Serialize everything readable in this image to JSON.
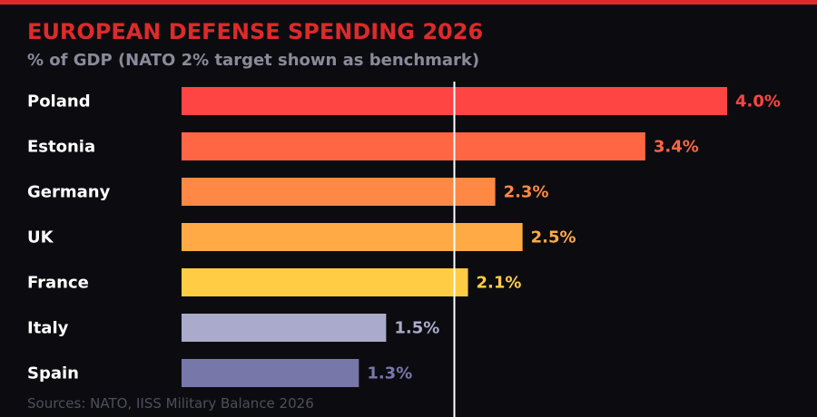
{
  "header": {
    "title": "EUROPEAN DEFENSE SPENDING 2026",
    "subtitle": "% of GDP (NATO 2% target shown as benchmark)"
  },
  "footer": {
    "source": "Sources: NATO, IISS Military Balance 2026"
  },
  "colors": {
    "accent": "#dd2a2a",
    "background": "#0c0c10",
    "benchmark": "#ffffff"
  },
  "chart_data": {
    "type": "bar",
    "orientation": "horizontal",
    "title": "EUROPEAN DEFENSE SPENDING 2026",
    "subtitle": "% of GDP (NATO 2% target shown as benchmark)",
    "categories": [
      "Poland",
      "Estonia",
      "Germany",
      "UK",
      "France",
      "Italy",
      "Spain"
    ],
    "values": [
      4.0,
      3.4,
      2.3,
      2.5,
      2.1,
      1.5,
      1.3
    ],
    "value_labels": [
      "4.0%",
      "3.4%",
      "2.3%",
      "2.5%",
      "2.1%",
      "1.5%",
      "1.3%"
    ],
    "bar_colors": [
      "#ff4444",
      "#ff6644",
      "#ff8844",
      "#ffaa44",
      "#ffcc44",
      "#aaaacc",
      "#7777aa"
    ],
    "benchmark": 2.0,
    "xlim": [
      0,
      4.0
    ],
    "grid": false,
    "legend": "none"
  }
}
